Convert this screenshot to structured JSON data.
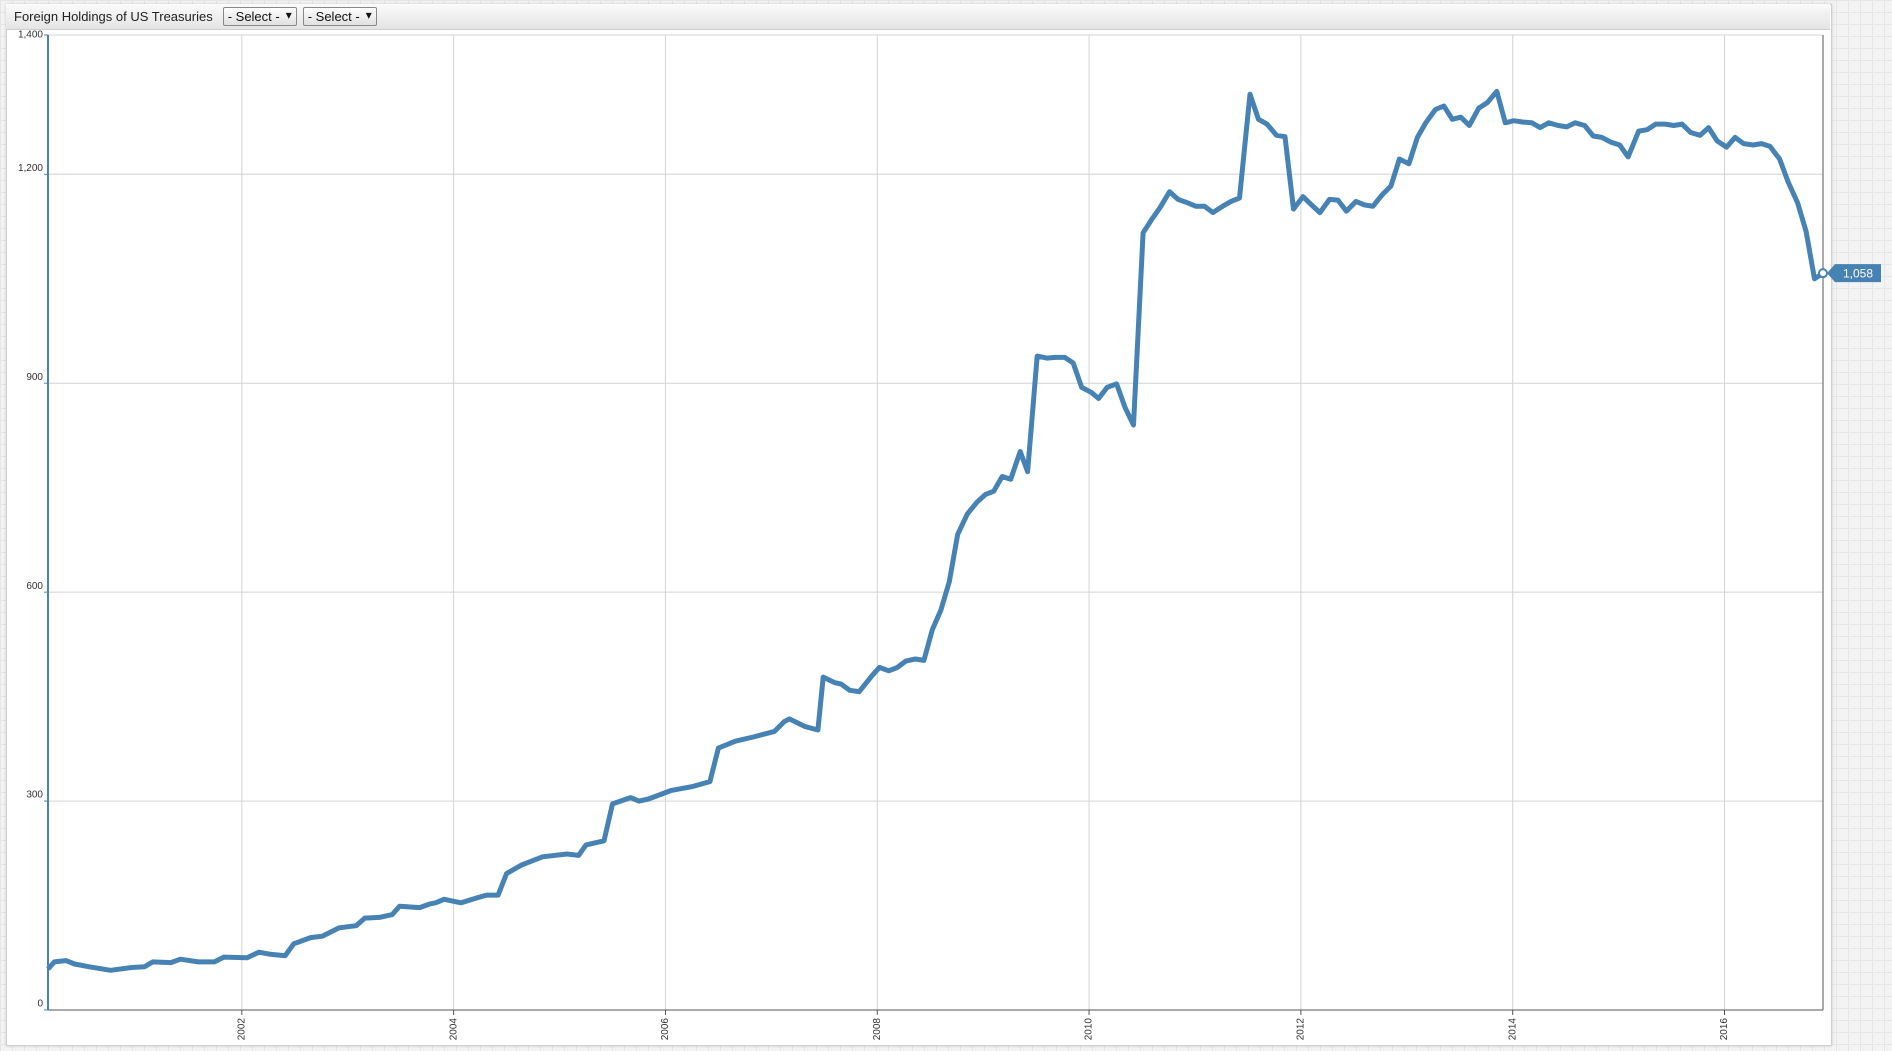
{
  "chart_data": {
    "type": "line",
    "title": "Foreign Holdings of US Treasuries",
    "color": "#4682b4",
    "grid": true,
    "x": [
      2000.17,
      2000.23,
      2000.34,
      2000.42,
      2000.56,
      2000.76,
      2000.96,
      2001.08,
      2001.16,
      2001.33,
      2001.42,
      2001.59,
      2001.74,
      2001.83,
      2002.05,
      2002.16,
      2002.27,
      2002.41,
      2002.49,
      2002.65,
      2002.76,
      2002.92,
      2003.08,
      2003.16,
      2003.3,
      2003.42,
      2003.49,
      2003.68,
      2003.77,
      2003.83,
      2003.91,
      2004.07,
      2004.22,
      2004.31,
      2004.42,
      2004.5,
      2004.64,
      2004.84,
      2005.07,
      2005.18,
      2005.25,
      2005.42,
      2005.5,
      2005.67,
      2005.75,
      2005.84,
      2006.05,
      2006.26,
      2006.42,
      2006.5,
      2006.66,
      2006.83,
      2007.03,
      2007.12,
      2007.17,
      2007.32,
      2007.44,
      2007.49,
      2007.6,
      2007.66,
      2007.74,
      2007.83,
      2007.95,
      2008.02,
      2008.11,
      2008.19,
      2008.27,
      2008.36,
      2008.44,
      2008.52,
      2008.6,
      2008.68,
      2008.76,
      2008.85,
      2008.94,
      2009.02,
      2009.1,
      2009.18,
      2009.26,
      2009.35,
      2009.42,
      2009.51,
      2009.6,
      2009.68,
      2009.77,
      2009.85,
      2009.93,
      2010.02,
      2010.09,
      2010.17,
      2010.26,
      2010.34,
      2010.42,
      2010.51,
      2010.59,
      2010.67,
      2010.76,
      2010.84,
      2010.93,
      2011.01,
      2011.09,
      2011.17,
      2011.26,
      2011.34,
      2011.42,
      2011.52,
      2011.6,
      2011.68,
      2011.77,
      2011.85,
      2011.93,
      2012.02,
      2012.1,
      2012.18,
      2012.27,
      2012.35,
      2012.43,
      2012.52,
      2012.6,
      2012.68,
      2012.77,
      2012.85,
      2012.93,
      2013.02,
      2013.1,
      2013.18,
      2013.27,
      2013.35,
      2013.43,
      2013.51,
      2013.59,
      2013.68,
      2013.76,
      2013.85,
      2013.93,
      2014.01,
      2014.1,
      2014.18,
      2014.26,
      2014.34,
      2014.43,
      2014.51,
      2014.59,
      2014.68,
      2014.76,
      2014.84,
      2014.93,
      2015.01,
      2015.09,
      2015.19,
      2015.27,
      2015.35,
      2015.44,
      2015.52,
      2015.6,
      2015.68,
      2015.77,
      2015.85,
      2015.93,
      2016.02,
      2016.1,
      2016.18,
      2016.27,
      2016.35,
      2016.43,
      2016.52,
      2016.6,
      2016.69,
      2016.77,
      2016.85,
      2016.93
    ],
    "values": [
      59,
      69,
      71,
      66,
      62,
      57,
      61,
      62,
      69,
      68,
      73,
      69,
      69,
      76,
      75,
      83,
      80,
      78,
      95,
      104,
      106,
      118,
      121,
      132,
      133,
      137,
      149,
      147,
      152,
      154,
      159,
      154,
      161,
      165,
      165,
      196,
      208,
      220,
      224,
      222,
      237,
      243,
      296,
      305,
      300,
      303,
      315,
      321,
      328,
      376,
      386,
      392,
      400,
      414,
      418,
      407,
      402,
      478,
      470,
      468,
      459,
      457,
      480,
      492,
      487,
      492,
      501,
      504,
      502,
      546,
      574,
      615,
      683,
      712,
      729,
      740,
      745,
      766,
      762,
      802,
      773,
      939,
      936,
      937,
      937,
      929,
      894,
      887,
      878,
      894,
      899,
      865,
      840,
      1116,
      1135,
      1152,
      1175,
      1164,
      1159,
      1154,
      1154,
      1145,
      1154,
      1161,
      1166,
      1315,
      1279,
      1272,
      1256,
      1254,
      1150,
      1168,
      1156,
      1145,
      1164,
      1163,
      1147,
      1161,
      1156,
      1154,
      1171,
      1183,
      1222,
      1215,
      1253,
      1274,
      1293,
      1298,
      1279,
      1282,
      1270,
      1295,
      1303,
      1319,
      1274,
      1277,
      1275,
      1274,
      1267,
      1274,
      1270,
      1268,
      1274,
      1270,
      1255,
      1253,
      1246,
      1242,
      1225,
      1262,
      1264,
      1272,
      1272,
      1270,
      1272,
      1260,
      1256,
      1267,
      1248,
      1239,
      1253,
      1244,
      1242,
      1244,
      1240,
      1222,
      1189,
      1159,
      1118,
      1050,
      1058
    ],
    "end_label": "1,058",
    "xlim": [
      2000.17,
      2016.93
    ],
    "xticks": [
      2002,
      2004,
      2006,
      2008,
      2010,
      2012,
      2014,
      2016
    ],
    "ylim": [
      0,
      1400
    ],
    "yticks": [
      0,
      300,
      600,
      900,
      {
        "value": 1200,
        "label": "1,200"
      },
      {
        "value": 1400,
        "label": "1,400"
      }
    ]
  },
  "toolbar": {
    "selects": [
      "- Select -",
      "- Select -"
    ]
  }
}
